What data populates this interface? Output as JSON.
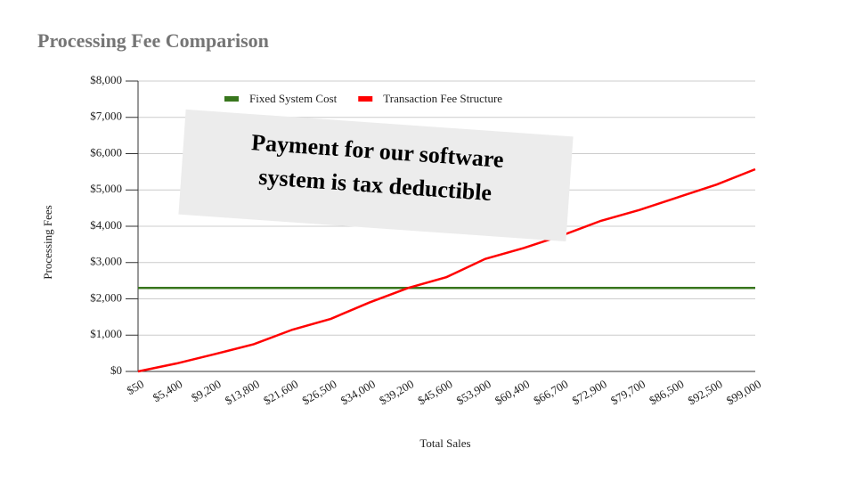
{
  "chart_data": {
    "type": "line",
    "title": "Processing Fee Comparison",
    "x_label": "Total Sales",
    "y_label": "Processing Fees",
    "annotation": [
      "Payment for our software",
      "system is tax deductible"
    ],
    "categories": [
      "$50",
      "$5,400",
      "$9,200",
      "$13,800",
      "$21,600",
      "$26,500",
      "$34,000",
      "$39,200",
      "$45,600",
      "$53,900",
      "$60,400",
      "$66,700",
      "$72,900",
      "$79,700",
      "$86,500",
      "$92,500",
      "$99,000"
    ],
    "series": [
      {
        "name": "Fixed System Cost",
        "color": "#38761d",
        "values": [
          2300,
          2300,
          2300,
          2300,
          2300,
          2300,
          2300,
          2300,
          2300,
          2300,
          2300,
          2300,
          2300,
          2300,
          2300,
          2300,
          2300
        ]
      },
      {
        "name": "Transaction Fee Structure",
        "color": "#ff0000",
        "values": [
          0,
          220,
          480,
          750,
          1150,
          1450,
          1900,
          2300,
          2600,
          3100,
          3400,
          3750,
          4150,
          4450,
          4800,
          5150,
          5570
        ]
      }
    ],
    "ylim": [
      0,
      8000
    ],
    "yticks": [
      {
        "value": 0,
        "label": "$0"
      },
      {
        "value": 1000,
        "label": "$1,000"
      },
      {
        "value": 2000,
        "label": "$2,000"
      },
      {
        "value": 3000,
        "label": "$3,000"
      },
      {
        "value": 4000,
        "label": "$4,000"
      },
      {
        "value": 5000,
        "label": "$5,000"
      },
      {
        "value": 6000,
        "label": "$6,000"
      },
      {
        "value": 7000,
        "label": "$7,000"
      },
      {
        "value": 8000,
        "label": "$8,000"
      }
    ],
    "grid": true,
    "legend": "top"
  }
}
